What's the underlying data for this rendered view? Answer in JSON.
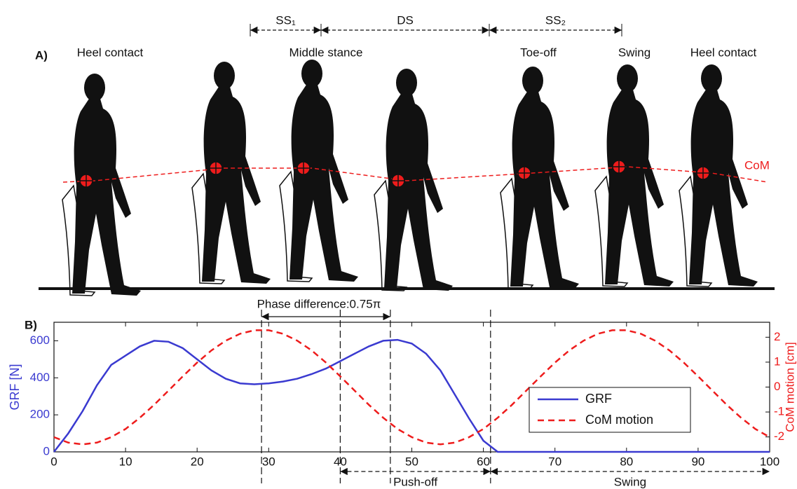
{
  "figure_a": {
    "panel_label": "A)",
    "phases": [
      "Heel contact",
      "Middle stance",
      "Toe-off",
      "Swing",
      "Heel contact"
    ],
    "intervals": [
      "SS₁",
      "DS",
      "SS₂"
    ],
    "com_label": "CoM"
  },
  "chart_data": {
    "type": "line",
    "panel_label": "B)",
    "x": [
      0,
      2,
      4,
      6,
      8,
      10,
      12,
      14,
      16,
      18,
      20,
      22,
      24,
      26,
      28,
      30,
      32,
      34,
      36,
      38,
      40,
      42,
      44,
      46,
      48,
      50,
      52,
      54,
      56,
      58,
      60,
      62,
      64,
      66,
      68,
      70,
      72,
      74,
      76,
      78,
      80,
      82,
      84,
      86,
      88,
      90,
      92,
      94,
      96,
      98,
      100
    ],
    "series": [
      {
        "name": "GRF",
        "color": "#3a3ad0",
        "linestyle": "solid",
        "values": [
          0,
          100,
          220,
          360,
          470,
          520,
          570,
          600,
          595,
          560,
          500,
          440,
          395,
          370,
          365,
          370,
          380,
          395,
          420,
          450,
          490,
          530,
          570,
          600,
          605,
          585,
          530,
          440,
          310,
          180,
          60,
          0,
          0,
          0,
          0,
          0,
          0,
          0,
          0,
          0,
          0,
          0,
          0,
          0,
          0,
          0,
          0,
          0,
          0,
          0,
          0
        ]
      },
      {
        "name": "CoM motion",
        "color": "#ee1c1c",
        "linestyle": "dashed",
        "axis": "y2",
        "values": [
          -2.01,
          -2.23,
          -2.3,
          -2.23,
          -2.01,
          -1.68,
          -1.23,
          -0.71,
          -0.14,
          0.43,
          0.98,
          1.47,
          1.86,
          2.14,
          2.28,
          2.28,
          2.14,
          1.86,
          1.47,
          0.98,
          0.43,
          -0.14,
          -0.71,
          -1.23,
          -1.68,
          -2.01,
          -2.23,
          -2.3,
          -2.23,
          -2.01,
          -1.68,
          -1.23,
          -0.71,
          -0.14,
          0.43,
          0.98,
          1.47,
          1.86,
          2.14,
          2.28,
          2.28,
          2.14,
          1.86,
          1.47,
          0.98,
          0.43,
          -0.14,
          -0.71,
          -1.23,
          -1.68,
          -2.01
        ]
      }
    ],
    "xlim": [
      0,
      100
    ],
    "xticks": [
      0,
      10,
      20,
      30,
      40,
      50,
      60,
      70,
      80,
      90,
      100
    ],
    "ylim": [
      0,
      700
    ],
    "yticks": [
      0,
      200,
      400,
      600
    ],
    "ylabel": "GRF [N]",
    "y2lim": [
      -2.6,
      2.6
    ],
    "y2ticks": [
      -2,
      -1,
      0,
      1,
      2
    ],
    "y2label": "CoM motion [cm]",
    "vlines": [
      29,
      40,
      47,
      61
    ],
    "annotations": [
      {
        "text": "Phase difference:0.75π",
        "x": [
          29,
          47
        ],
        "position": "top"
      },
      {
        "text": "Push-off",
        "x": [
          40,
          61
        ],
        "position": "bottom"
      },
      {
        "text": "Swing",
        "x": [
          61,
          100
        ],
        "position": "bottom"
      }
    ],
    "legend": "center right"
  }
}
